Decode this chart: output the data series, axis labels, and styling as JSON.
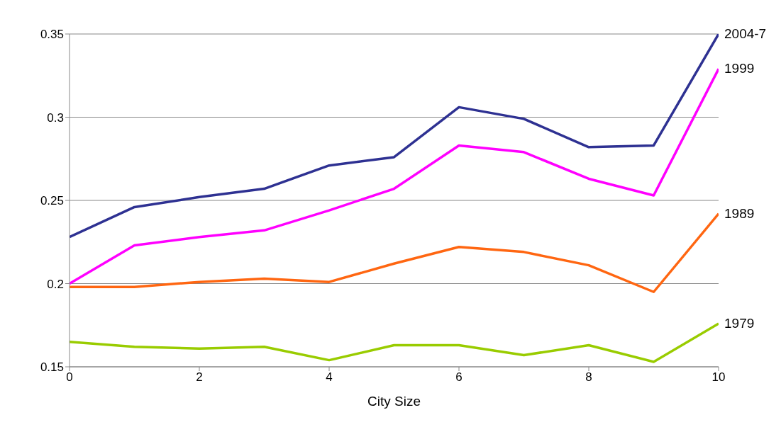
{
  "chart_data": {
    "type": "line",
    "xlabel": "City Size",
    "x": [
      0,
      1,
      2,
      3,
      4,
      5,
      6,
      7,
      8,
      9,
      10
    ],
    "xlim": [
      0,
      10
    ],
    "xticks": [
      0,
      2,
      4,
      6,
      8,
      10
    ],
    "ylim": [
      0.15,
      0.35
    ],
    "yticks": [
      0.15,
      0.2,
      0.25,
      0.3,
      0.35
    ],
    "grid": "y",
    "legend": false,
    "marker": "none",
    "series": [
      {
        "name": "2004-7",
        "color": "#2e3192",
        "values": [
          0.228,
          0.246,
          0.252,
          0.257,
          0.271,
          0.276,
          0.306,
          0.299,
          0.282,
          0.283,
          0.35
        ]
      },
      {
        "name": "1999",
        "color": "#ff00ff",
        "values": [
          0.2,
          0.223,
          0.228,
          0.232,
          0.244,
          0.257,
          0.283,
          0.279,
          0.263,
          0.253,
          0.329
        ]
      },
      {
        "name": "1989",
        "color": "#ff6611",
        "values": [
          0.198,
          0.198,
          0.201,
          0.203,
          0.201,
          0.212,
          0.222,
          0.219,
          0.211,
          0.195,
          0.242
        ]
      },
      {
        "name": "1979",
        "color": "#99cc00",
        "values": [
          0.165,
          0.162,
          0.161,
          0.162,
          0.154,
          0.163,
          0.163,
          0.157,
          0.163,
          0.153,
          0.176
        ]
      }
    ]
  }
}
